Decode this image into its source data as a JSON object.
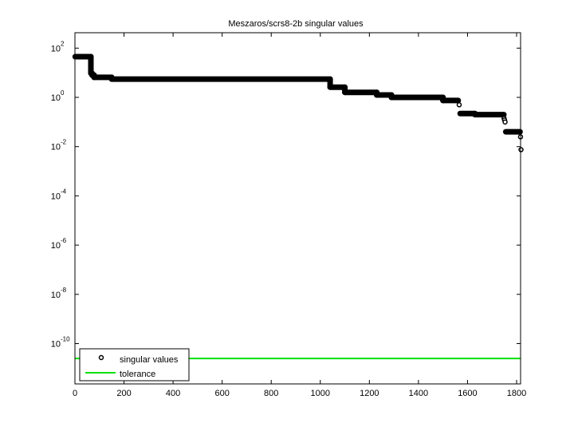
{
  "chart_data": {
    "type": "scatter",
    "title": "Meszaros/scrs8-2b singular values",
    "xlabel": "",
    "ylabel": "",
    "xscale": "linear",
    "yscale": "log",
    "xlim": [
      0,
      1820
    ],
    "ylim_exponent": [
      -11.75,
      2.6
    ],
    "grid": false,
    "legend_position": "lower left",
    "x_ticks": [
      0,
      200,
      400,
      600,
      800,
      1000,
      1200,
      1400,
      1600,
      1800
    ],
    "x_tick_labels": [
      "0",
      "200",
      "400",
      "600",
      "800",
      "1000",
      "1200",
      "1400",
      "1600",
      "1800"
    ],
    "y_ticks_exponent": [
      2,
      0,
      -2,
      -4,
      -6,
      -8,
      -10
    ],
    "y_tick_labels": [
      {
        "base": "10",
        "exp": "2"
      },
      {
        "base": "10",
        "exp": "0"
      },
      {
        "base": "10",
        "exp": "-2"
      },
      {
        "base": "10",
        "exp": "-4"
      },
      {
        "base": "10",
        "exp": "-6"
      },
      {
        "base": "10",
        "exp": "-8"
      },
      {
        "base": "10",
        "exp": "-10"
      }
    ],
    "series": [
      {
        "name": "singular values",
        "style": "marker-circle",
        "color": "#000000",
        "segments": [
          {
            "x_start": 1,
            "x_end": 65,
            "value": 45
          },
          {
            "x_start": 65,
            "x_end": 70,
            "value": 9.5
          },
          {
            "x_start": 70,
            "x_end": 78,
            "value": 8
          },
          {
            "x_start": 78,
            "x_end": 150,
            "value": 6.5
          },
          {
            "x_start": 150,
            "x_end": 1040,
            "value": 5.5
          },
          {
            "x_start": 1040,
            "x_end": 1100,
            "value": 2.6
          },
          {
            "x_start": 1100,
            "x_end": 1230,
            "value": 1.6
          },
          {
            "x_start": 1230,
            "x_end": 1290,
            "value": 1.25
          },
          {
            "x_start": 1290,
            "x_end": 1500,
            "value": 1.0
          },
          {
            "x_start": 1500,
            "x_end": 1562,
            "value": 0.75
          },
          {
            "x_start": 1570,
            "x_end": 1630,
            "value": 0.22
          },
          {
            "x_start": 1630,
            "x_end": 1748,
            "value": 0.2
          },
          {
            "x_start": 1756,
            "x_end": 1814,
            "value": 0.04
          }
        ],
        "points": [
          {
            "x": 1566,
            "y": 0.5
          },
          {
            "x": 1749,
            "y": 0.14
          },
          {
            "x": 1751,
            "y": 0.12
          },
          {
            "x": 1753,
            "y": 0.1
          },
          {
            "x": 1816,
            "y": 0.025
          },
          {
            "x": 1818,
            "y": 0.0075
          }
        ]
      },
      {
        "name": "tolerance",
        "style": "line",
        "color": "#00e000",
        "value": 2.5e-11
      }
    ],
    "legend": [
      {
        "label": "singular values",
        "symbol": "circle"
      },
      {
        "label": "tolerance",
        "symbol": "line"
      }
    ]
  }
}
